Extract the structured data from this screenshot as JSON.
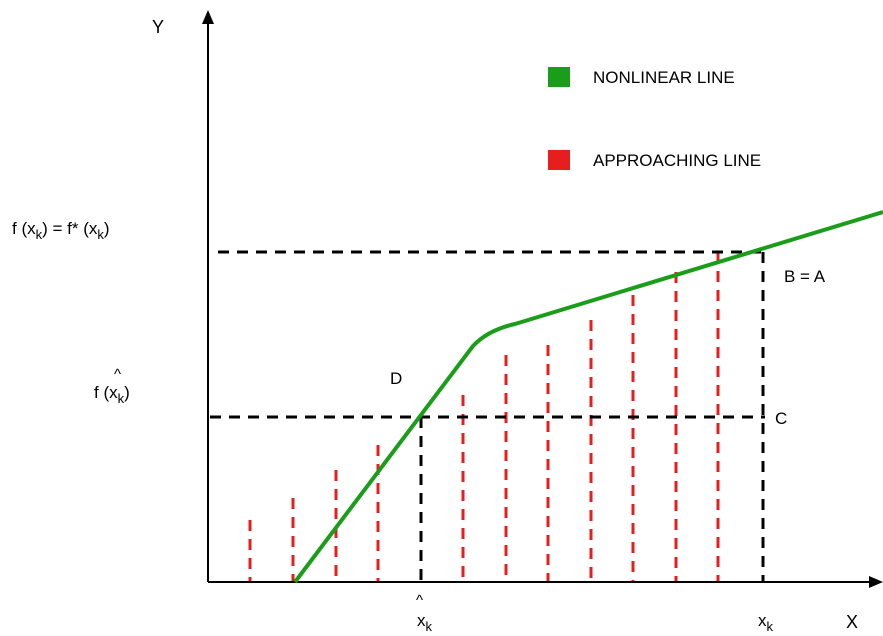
{
  "diagram": {
    "axes": {
      "x_label": "X",
      "y_label": "Y"
    },
    "legend": [
      {
        "label": "NONLINEAR LINE",
        "color": "#1a9e1a"
      },
      {
        "label": "APPROACHING LINE",
        "color": "#e61e1e"
      }
    ],
    "points": {
      "ba_label": "B = A",
      "c_label": "C",
      "d_label": "D"
    },
    "y_axis_labels": {
      "fxk": {
        "f_open": "f (x",
        "sub": "k",
        "mid": ") = f* (x",
        "sub2": "k",
        "close": ")"
      },
      "fxhat": {
        "hat": "^",
        "f_open": "f (x",
        "sub": "k",
        "close": ")"
      }
    },
    "x_axis_labels": {
      "xhat": {
        "hat": "^",
        "x": "x",
        "sub": "k"
      },
      "xk": {
        "x": "x",
        "sub": "k"
      }
    },
    "colors": {
      "nonlinear": "#1a9e1a",
      "approaching": "#e61e1e",
      "guide": "#000000"
    }
  }
}
